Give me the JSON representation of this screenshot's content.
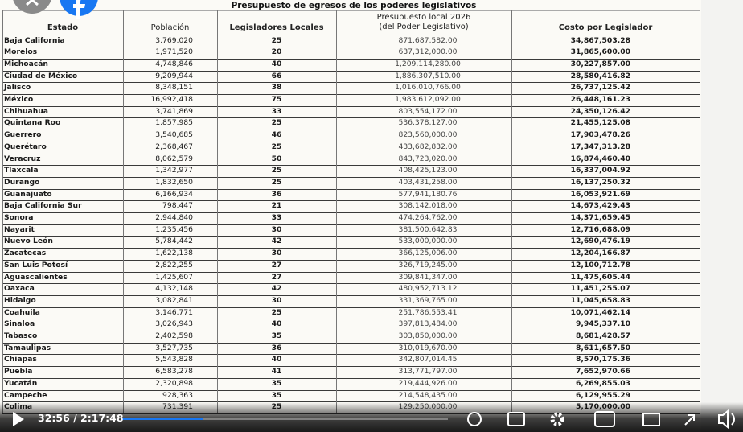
{
  "table": {
    "title": "Presupuesto de egresos de los poderes legislativos",
    "header": [
      "Estado",
      "Población",
      "Legisladores Locales",
      [
        "Presupuesto local 2026",
        "(del Poder Legislativo)"
      ],
      "Costo por Legislador"
    ],
    "rows": [
      [
        "Baja California",
        "3,769,020",
        "25",
        "871,687,582.00",
        "34,867,503.28"
      ],
      [
        "Morelos",
        "1,971,520",
        "20",
        "637,312,000.00",
        "31,865,600.00"
      ],
      [
        "Michoacán",
        "4,748,846",
        "40",
        "1,209,114,280.00",
        "30,227,857.00"
      ],
      [
        "Ciudad  de México",
        "9,209,944",
        "66",
        "1,886,307,510.00",
        "28,580,416.82"
      ],
      [
        "Jalisco",
        "8,348,151",
        "38",
        "1,016,010,766.00",
        "26,737,125.42"
      ],
      [
        "México",
        "16,992,418",
        "75",
        "1,983,612,092.00",
        "26,448,161.23"
      ],
      [
        "Chihuahua",
        "3,741,869",
        "33",
        "803,554,172.00",
        "24,350,126.42"
      ],
      [
        "Quintana Roo",
        "1,857,985",
        "25",
        "536,378,127.00",
        "21,455,125.08"
      ],
      [
        "Guerrero",
        "3,540,685",
        "46",
        "823,560,000.00",
        "17,903,478.26"
      ],
      [
        "Querétaro",
        "2,368,467",
        "25",
        "433,682,832.00",
        "17,347,313.28"
      ],
      [
        "Veracruz",
        "8,062,579",
        "50",
        "843,723,020.00",
        "16,874,460.40"
      ],
      [
        "Tlaxcala",
        "1,342,977",
        "25",
        "408,425,123.00",
        "16,337,004.92"
      ],
      [
        "Durango",
        "1,832,650",
        "25",
        "403,431,258.00",
        "16,137,250.32"
      ],
      [
        "Guanajuato",
        "6,166,934",
        "36",
        "577,941,180.76",
        "16,053,921.69"
      ],
      [
        "Baja California Sur",
        "798,447",
        "21",
        "308,142,018.00",
        "14,673,429.43"
      ],
      [
        "Sonora",
        "2,944,840",
        "33",
        "474,264,762.00",
        "14,371,659.45"
      ],
      [
        "Nayarit",
        "1,235,456",
        "30",
        "381,500,642.83",
        "12,716,688.09"
      ],
      [
        "Nuevo León",
        "5,784,442",
        "42",
        "533,000,000.00",
        "12,690,476.19"
      ],
      [
        "Zacatecas",
        "1,622,138",
        "30",
        "366,125,006.00",
        "12,204,166.87"
      ],
      [
        "San Luis Potosí",
        "2,822,255",
        "27",
        "326,719,245.00",
        "12,100,712.78"
      ],
      [
        "Aguascalientes",
        "1,425,607",
        "27",
        "309,841,347.00",
        "11,475,605.44"
      ],
      [
        "Oaxaca",
        "4,132,148",
        "42",
        "480,952,713.12",
        "11,451,255.07"
      ],
      [
        "Hidalgo",
        "3,082,841",
        "30",
        "331,369,765.00",
        "11,045,658.83"
      ],
      [
        "Coahuila",
        "3,146,771",
        "25",
        "251,786,553.41",
        "10,071,462.14"
      ],
      [
        "Sinaloa",
        "3,026,943",
        "40",
        "397,813,484.00",
        "9,945,337.10"
      ],
      [
        "Tabasco",
        "2,402,598",
        "35",
        "303,850,000.00",
        "8,681,428.57"
      ],
      [
        "Tamaulipas",
        "3,527,735",
        "36",
        "310,019,670.00",
        "8,611,657.50"
      ],
      [
        "Chiapas",
        "5,543,828",
        "40",
        "342,807,014.45",
        "8,570,175.36"
      ],
      [
        "Puebla",
        "6,583,278",
        "41",
        "313,771,797.00",
        "7,652,970.66"
      ],
      [
        "Yucatán",
        "2,320,898",
        "35",
        "219,444,926.00",
        "6,269,855.03"
      ],
      [
        "Campeche",
        "928,363",
        "35",
        "214,548,435.00",
        "6,129,955.29"
      ],
      [
        "Colima",
        "731,391",
        "25",
        "129,250,000.00",
        "5,170,000.00"
      ]
    ]
  },
  "player": {
    "time": "32:56 / 2:17:48"
  }
}
